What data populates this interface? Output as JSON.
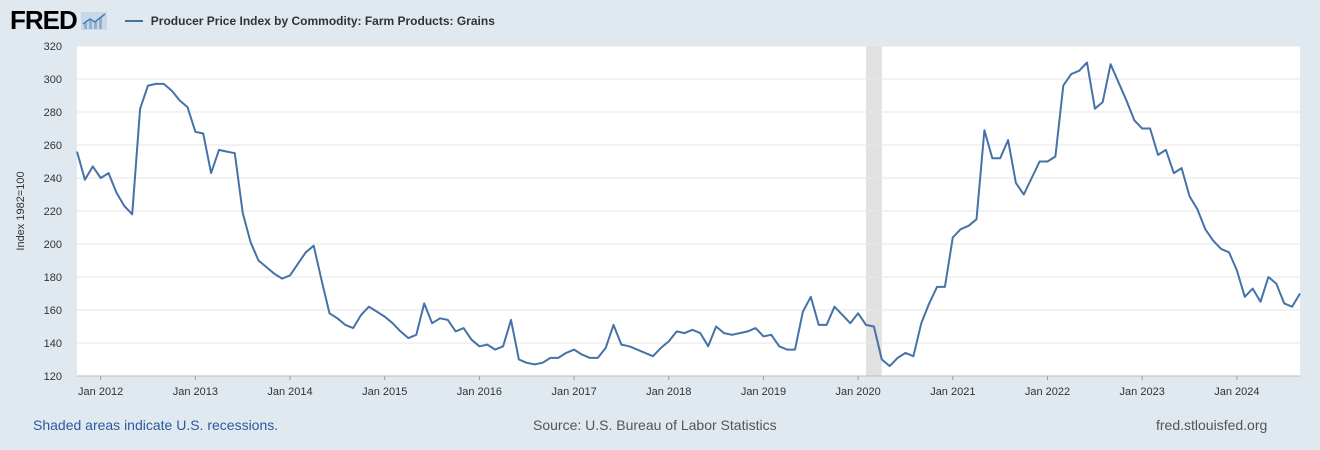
{
  "header": {
    "logo_text": "FRED",
    "legend_label": "Producer Price Index by Commodity: Farm Products: Grains"
  },
  "footer": {
    "recession_note": "Shaded areas indicate U.S. recessions.",
    "source": "Source: U.S. Bureau of Labor Statistics",
    "site": "fred.stlouisfed.org"
  },
  "colors": {
    "line": "#4572a7",
    "recession": "#e1e1e1",
    "background": "#e1e9f0",
    "plot": "#ffffff",
    "grid": "#e6e6e6"
  },
  "chart_data": {
    "type": "line",
    "title": "Producer Price Index by Commodity: Farm Products: Grains",
    "xlabel": "",
    "ylabel": "Index 1982=100",
    "ylim": [
      120,
      320
    ],
    "yticks": [
      120,
      140,
      160,
      180,
      200,
      220,
      240,
      260,
      280,
      300,
      320
    ],
    "xlim": [
      "2011-10",
      "2024-09"
    ],
    "xticks": [
      {
        "date": "2012-01",
        "label": "Jan 2012"
      },
      {
        "date": "2013-01",
        "label": "Jan 2013"
      },
      {
        "date": "2014-01",
        "label": "Jan 2014"
      },
      {
        "date": "2015-01",
        "label": "Jan 2015"
      },
      {
        "date": "2016-01",
        "label": "Jan 2016"
      },
      {
        "date": "2017-01",
        "label": "Jan 2017"
      },
      {
        "date": "2018-01",
        "label": "Jan 2018"
      },
      {
        "date": "2019-01",
        "label": "Jan 2019"
      },
      {
        "date": "2020-01",
        "label": "Jan 2020"
      },
      {
        "date": "2021-01",
        "label": "Jan 2021"
      },
      {
        "date": "2022-01",
        "label": "Jan 2022"
      },
      {
        "date": "2023-01",
        "label": "Jan 2023"
      },
      {
        "date": "2024-01",
        "label": "Jan 2024"
      }
    ],
    "grid": true,
    "recessions": [
      {
        "start": "2020-02",
        "end": "2020-04"
      }
    ],
    "series": [
      {
        "name": "Producer Price Index by Commodity: Farm Products: Grains",
        "start": "2011-10",
        "values": [
          256,
          239,
          247,
          240,
          243,
          231,
          223,
          218,
          282,
          296,
          297,
          297,
          293,
          287,
          283,
          268,
          267,
          243,
          257,
          256,
          255,
          219,
          201,
          190,
          186,
          182,
          179,
          181,
          188,
          195,
          199,
          178,
          158,
          155,
          151,
          149,
          157,
          162,
          159,
          156,
          152,
          147,
          143,
          145,
          164,
          152,
          155,
          154,
          147,
          149,
          142,
          138,
          139,
          136,
          138,
          154,
          130,
          128,
          127,
          128,
          131,
          131,
          134,
          136,
          133,
          131,
          131,
          137,
          151,
          139,
          138,
          136,
          134,
          132,
          137,
          141,
          147,
          146,
          148,
          146,
          138,
          150,
          146,
          145,
          146,
          147,
          149,
          144,
          145,
          138,
          136,
          136,
          159,
          168,
          151,
          151,
          162,
          157,
          152,
          158,
          151,
          150,
          130,
          126,
          131,
          134,
          132,
          152,
          164,
          174,
          174,
          204,
          209,
          211,
          215,
          269,
          252,
          252,
          263,
          237,
          230,
          240,
          250,
          250,
          253,
          296,
          303,
          305,
          310,
          282,
          286,
          309,
          298,
          287,
          275,
          270,
          270,
          254,
          257,
          243,
          246,
          229,
          221,
          209,
          202,
          197,
          195,
          184,
          168,
          173,
          165,
          180,
          176,
          164,
          162,
          170
        ]
      }
    ]
  }
}
